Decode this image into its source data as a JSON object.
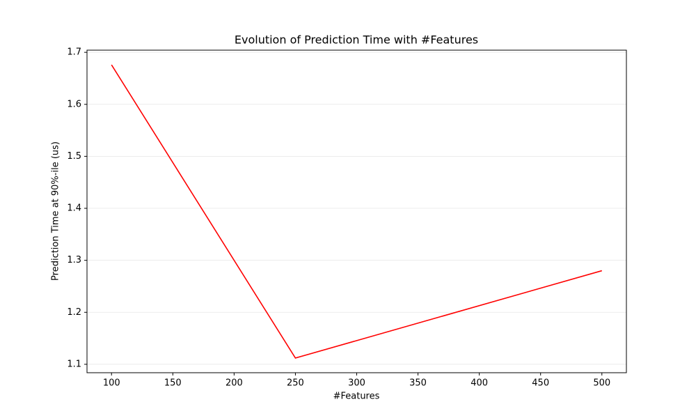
{
  "chart_data": {
    "type": "line",
    "title": "Evolution of Prediction Time with #Features",
    "x_label": "#Features",
    "y_label": "Prediction Time at 90%-ile (us)",
    "x": [
      100,
      250,
      500
    ],
    "series": [
      {
        "color": "#ff0000",
        "values": [
          1.676,
          1.112,
          1.28
        ]
      }
    ],
    "xlim": [
      80,
      520
    ],
    "xticks": [
      100,
      150,
      200,
      250,
      300,
      350,
      400,
      450,
      500
    ],
    "ylim": [
      1.0838,
      1.7042
    ],
    "yticks": [
      1.1,
      1.2,
      1.3,
      1.4,
      1.5,
      1.6,
      1.7
    ],
    "grid": true
  }
}
